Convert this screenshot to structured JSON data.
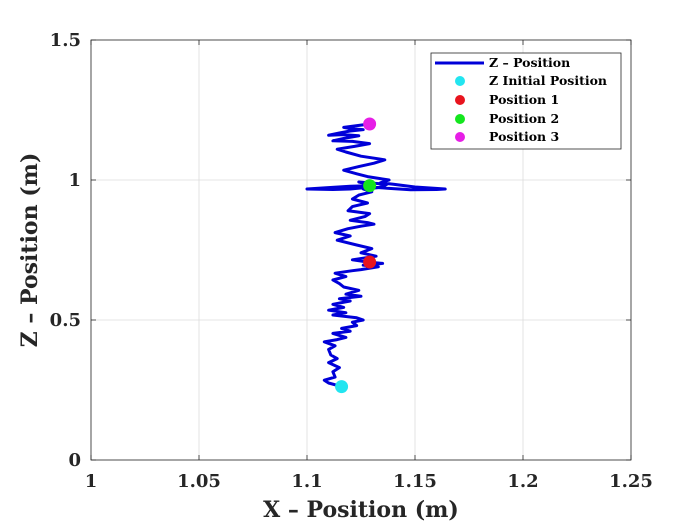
{
  "chart_data": {
    "type": "line",
    "title": "",
    "xlabel": "X – Position (m)",
    "ylabel": "Z – Position (m)",
    "xlim": [
      1,
      1.25
    ],
    "ylim": [
      0,
      1.5
    ],
    "xticks": [
      1,
      1.05,
      1.1,
      1.15,
      1.2,
      1.25
    ],
    "xtick_labels": [
      "1",
      "1.05",
      "1.1",
      "1.15",
      "1.2",
      "1.25"
    ],
    "yticks": [
      0,
      0.5,
      1,
      1.5
    ],
    "ytick_labels": [
      "0",
      "0.5",
      "1",
      "1.5"
    ],
    "grid": true,
    "legend_position": "top-right",
    "series": [
      {
        "name": "Z – Position",
        "kind": "line",
        "color": "#0000d8",
        "x": [
          1.116,
          1.11,
          1.108,
          1.113,
          1.112,
          1.115,
          1.11,
          1.114,
          1.111,
          1.11,
          1.113,
          1.108,
          1.114,
          1.118,
          1.112,
          1.12,
          1.116,
          1.123,
          1.121,
          1.126,
          1.123,
          1.112,
          1.118,
          1.11,
          1.117,
          1.112,
          1.12,
          1.115,
          1.125,
          1.118,
          1.124,
          1.117,
          1.115,
          1.112,
          1.118,
          1.113,
          1.121,
          1.125,
          1.133,
          1.126,
          1.135,
          1.128,
          1.121,
          1.132,
          1.125,
          1.13,
          1.123,
          1.114,
          1.12,
          1.113,
          1.119,
          1.125,
          1.131,
          1.128,
          1.12,
          1.127,
          1.129,
          1.123,
          1.119,
          1.121,
          1.128,
          1.121,
          1.124,
          1.13,
          1.126,
          1.133,
          1.136,
          1.137,
          1.128,
          1.124,
          1.131,
          1.12,
          1.109,
          1.1,
          1.112,
          1.12,
          1.126,
          1.13,
          1.138,
          1.148,
          1.16,
          1.164,
          1.15,
          1.14,
          1.134,
          1.138,
          1.128,
          1.123,
          1.117,
          1.124,
          1.131,
          1.136,
          1.125,
          1.118,
          1.114,
          1.122,
          1.129,
          1.121,
          1.112,
          1.118,
          1.124,
          1.117,
          1.11,
          1.115,
          1.12,
          1.126,
          1.122,
          1.119,
          1.117,
          1.129
        ],
        "y": [
          0.262,
          0.275,
          0.285,
          0.296,
          0.315,
          0.33,
          0.348,
          0.362,
          0.375,
          0.395,
          0.408,
          0.422,
          0.43,
          0.438,
          0.452,
          0.46,
          0.47,
          0.48,
          0.492,
          0.5,
          0.508,
          0.518,
          0.526,
          0.535,
          0.545,
          0.556,
          0.568,
          0.576,
          0.585,
          0.592,
          0.606,
          0.618,
          0.63,
          0.643,
          0.655,
          0.667,
          0.676,
          0.68,
          0.69,
          0.696,
          0.702,
          0.707,
          0.715,
          0.728,
          0.74,
          0.755,
          0.768,
          0.785,
          0.8,
          0.812,
          0.826,
          0.835,
          0.842,
          0.848,
          0.856,
          0.87,
          0.88,
          0.886,
          0.89,
          0.905,
          0.918,
          0.932,
          0.946,
          0.958,
          0.968,
          0.973,
          0.98,
          0.985,
          0.99,
          0.993,
          0.98,
          0.978,
          0.972,
          0.968,
          0.966,
          0.968,
          0.972,
          0.975,
          0.97,
          0.965,
          0.966,
          0.968,
          0.975,
          0.985,
          0.99,
          1.0,
          1.012,
          1.022,
          1.035,
          1.048,
          1.06,
          1.072,
          1.085,
          1.1,
          1.11,
          1.12,
          1.13,
          1.138,
          1.14,
          1.15,
          1.158,
          1.162,
          1.16,
          1.168,
          1.175,
          1.18,
          1.182,
          1.185,
          1.188,
          1.2
        ]
      },
      {
        "name": "Z Initial Position",
        "kind": "marker",
        "color": "#22e5f0",
        "x": [
          1.116
        ],
        "y": [
          0.262
        ]
      },
      {
        "name": "Position 1",
        "kind": "marker",
        "color": "#e8141e",
        "x": [
          1.129
        ],
        "y": [
          0.707
        ]
      },
      {
        "name": "Position 2",
        "kind": "marker",
        "color": "#14e61e",
        "x": [
          1.129
        ],
        "y": [
          0.98
        ]
      },
      {
        "name": "Position 3",
        "kind": "marker",
        "color": "#e61ee6",
        "x": [
          1.129
        ],
        "y": [
          1.2
        ]
      }
    ]
  }
}
